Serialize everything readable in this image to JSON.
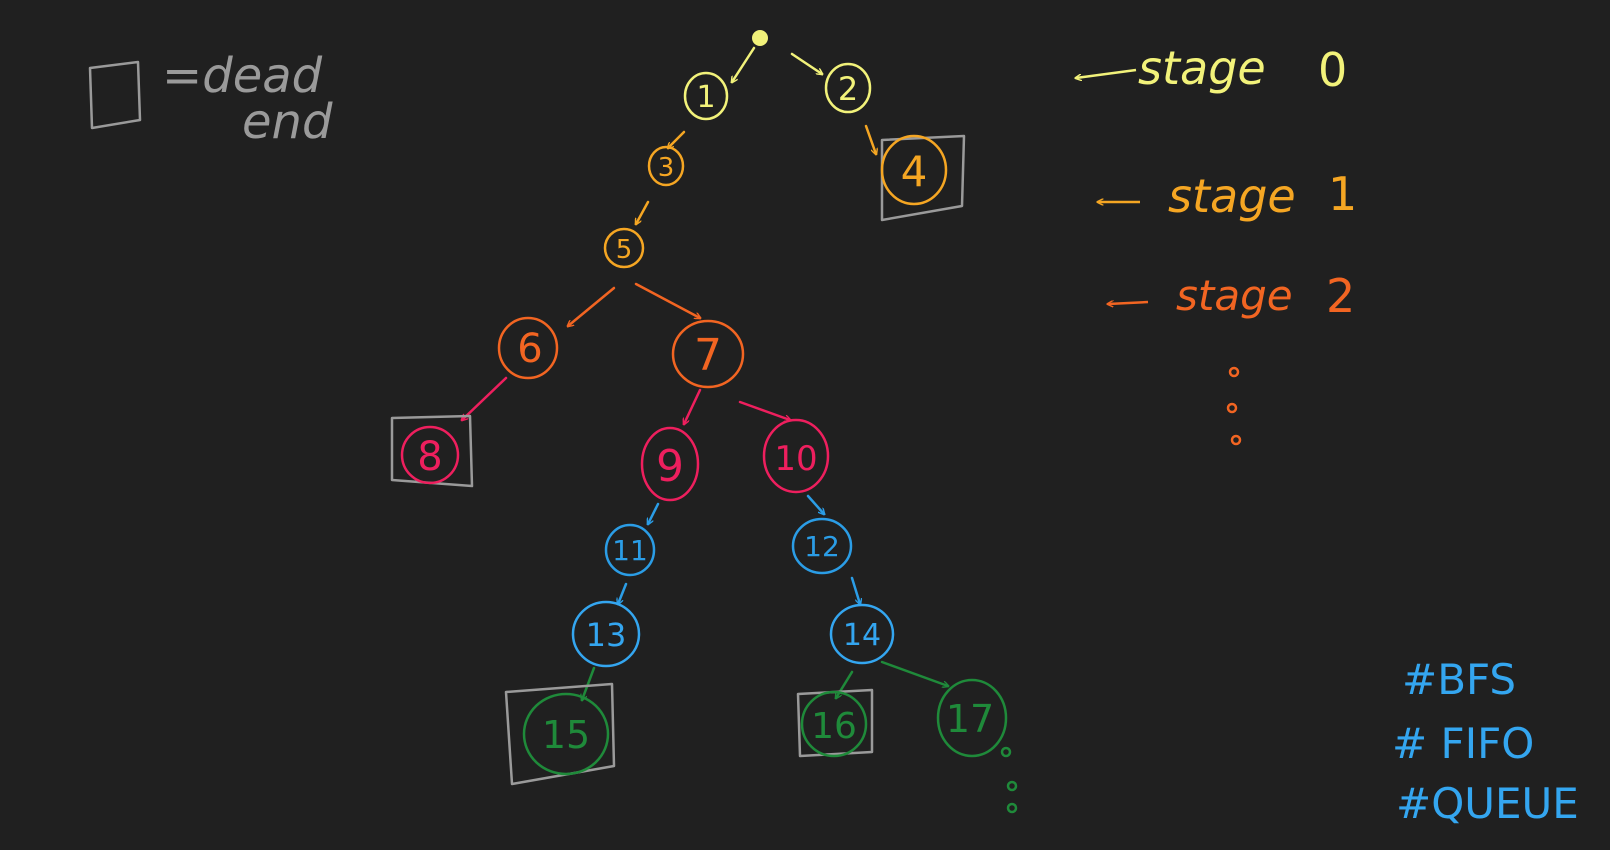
{
  "legend": {
    "line1": "=dead",
    "line2": "end",
    "color": "#9a9a9a"
  },
  "stages": [
    {
      "label": "stage",
      "number": "0",
      "color": "#f2f27a"
    },
    {
      "label": "stage",
      "number": "1",
      "color": "#f5a623"
    },
    {
      "label": "stage",
      "number": "2",
      "color": "#f26522"
    }
  ],
  "tags": [
    "#BFS",
    "# FIFO",
    "#QUEUE"
  ],
  "colors": {
    "yellow": "#f2f27a",
    "amber": "#f5a623",
    "orange": "#f26522",
    "pink": "#ee1f5e",
    "blue": "#2b9de6",
    "green": "#1f8a3a",
    "gray": "#9a9a9a",
    "tag": "#34a6f0",
    "background": "#202020"
  },
  "nodes": [
    {
      "id": "1",
      "label": "1",
      "color": "yellow",
      "dead_end": false
    },
    {
      "id": "2",
      "label": "2",
      "color": "yellow",
      "dead_end": false
    },
    {
      "id": "3",
      "label": "3",
      "color": "amber",
      "dead_end": false
    },
    {
      "id": "4",
      "label": "4",
      "color": "amber",
      "dead_end": true
    },
    {
      "id": "5",
      "label": "5",
      "color": "amber",
      "dead_end": false
    },
    {
      "id": "6",
      "label": "6",
      "color": "orange",
      "dead_end": false
    },
    {
      "id": "7",
      "label": "7",
      "color": "orange",
      "dead_end": false
    },
    {
      "id": "8",
      "label": "8",
      "color": "pink",
      "dead_end": true
    },
    {
      "id": "9",
      "label": "9",
      "color": "pink",
      "dead_end": false
    },
    {
      "id": "10",
      "label": "10",
      "color": "pink",
      "dead_end": false
    },
    {
      "id": "11",
      "label": "11",
      "color": "blue",
      "dead_end": false
    },
    {
      "id": "12",
      "label": "12",
      "color": "blue",
      "dead_end": false
    },
    {
      "id": "13",
      "label": "13",
      "color": "blue",
      "dead_end": false
    },
    {
      "id": "14",
      "label": "14",
      "color": "blue",
      "dead_end": false
    },
    {
      "id": "15",
      "label": "15",
      "color": "green",
      "dead_end": true
    },
    {
      "id": "16",
      "label": "16",
      "color": "green",
      "dead_end": true
    },
    {
      "id": "17",
      "label": "17",
      "color": "green",
      "dead_end": false
    }
  ],
  "edges": [
    {
      "from": "root",
      "to": "1"
    },
    {
      "from": "root",
      "to": "2"
    },
    {
      "from": "1",
      "to": "3"
    },
    {
      "from": "2",
      "to": "4"
    },
    {
      "from": "3",
      "to": "5"
    },
    {
      "from": "5",
      "to": "6"
    },
    {
      "from": "5",
      "to": "7"
    },
    {
      "from": "6",
      "to": "8"
    },
    {
      "from": "7",
      "to": "9"
    },
    {
      "from": "7",
      "to": "10"
    },
    {
      "from": "9",
      "to": "11"
    },
    {
      "from": "10",
      "to": "12"
    },
    {
      "from": "11",
      "to": "13"
    },
    {
      "from": "12",
      "to": "14"
    },
    {
      "from": "13",
      "to": "15"
    },
    {
      "from": "14",
      "to": "16"
    },
    {
      "from": "14",
      "to": "17"
    }
  ]
}
